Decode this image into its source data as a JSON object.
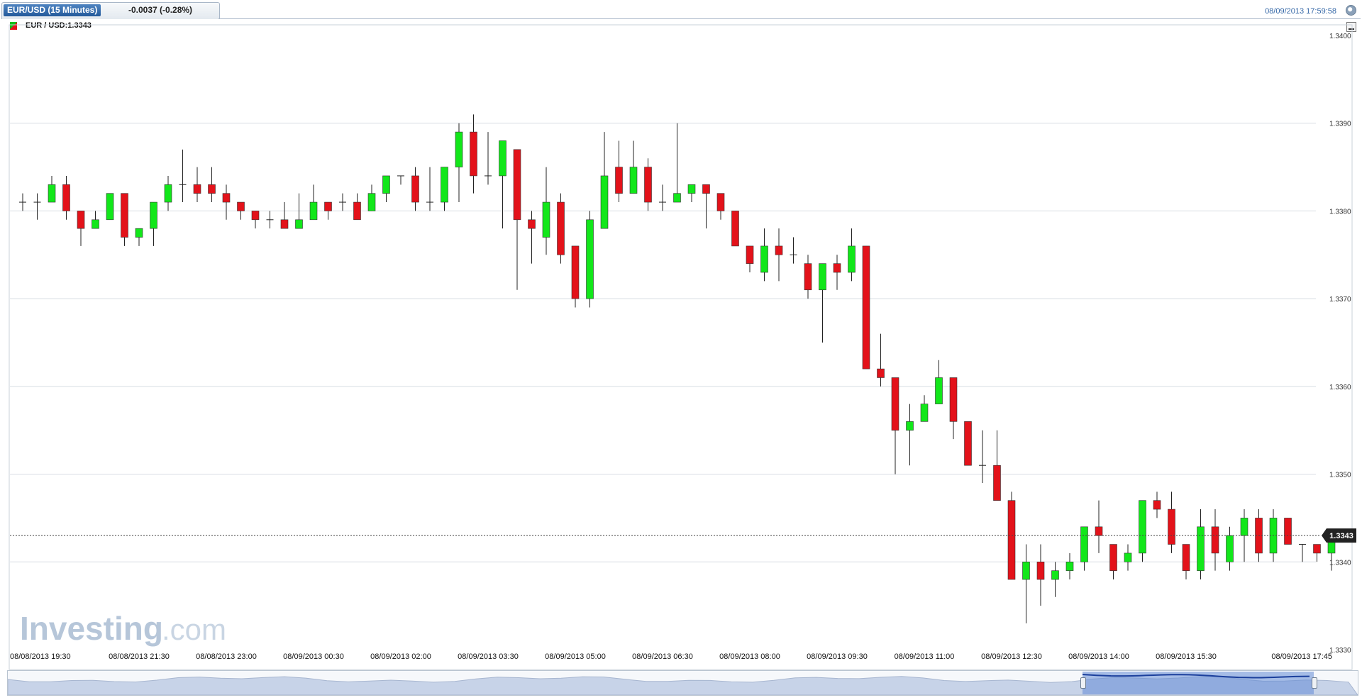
{
  "header": {
    "symbol_tab": "EUR/USD (15 Minutes)",
    "change": "-0.0037 (-0.28%)",
    "timestamp": "08/09/2013 17:59:58",
    "clock_icon": "clock-icon"
  },
  "legend": {
    "label": "EUR / USD:1.3343",
    "icon": "up-down-candle-icon"
  },
  "watermark": {
    "brand": "Investing",
    "suffix": ".com"
  },
  "colors": {
    "up": "#12e71a",
    "down": "#e3121a",
    "grid": "#d8dde3",
    "price_tag": "#222222"
  },
  "chart_data": {
    "type": "candlestick",
    "title": "EUR / USD",
    "interval": "15 Minutes",
    "ylim": [
      1.333,
      1.34
    ],
    "yticks": [
      "1.3400",
      "1.3390",
      "1.3380",
      "1.3370",
      "1.3360",
      "1.3350",
      "1.3340",
      "1.3330"
    ],
    "xticks": [
      {
        "label": "08/08/2013 19:30",
        "index": 0
      },
      {
        "label": "08/08/2013 21:30",
        "index": 8
      },
      {
        "label": "08/08/2013 23:00",
        "index": 14
      },
      {
        "label": "08/09/2013 00:30",
        "index": 20
      },
      {
        "label": "08/09/2013 02:00",
        "index": 26
      },
      {
        "label": "08/09/2013 03:30",
        "index": 32
      },
      {
        "label": "08/09/2013 05:00",
        "index": 38
      },
      {
        "label": "08/09/2013 06:30",
        "index": 44
      },
      {
        "label": "08/09/2013 08:00",
        "index": 50
      },
      {
        "label": "08/09/2013 09:30",
        "index": 56
      },
      {
        "label": "08/09/2013 11:00",
        "index": 62
      },
      {
        "label": "08/09/2013 12:30",
        "index": 68
      },
      {
        "label": "08/09/2013 14:00",
        "index": 74
      },
      {
        "label": "08/09/2013 15:30",
        "index": 80
      },
      {
        "label": "08/09/2013 17:45",
        "index": 89
      }
    ],
    "last_price": 1.3343,
    "last_price_label": "1.3343",
    "candles": [
      [
        1.3381,
        1.3382,
        1.338,
        1.3381
      ],
      [
        1.3381,
        1.3382,
        1.3379,
        1.3381
      ],
      [
        1.3381,
        1.3384,
        1.3381,
        1.3383
      ],
      [
        1.3383,
        1.3384,
        1.3379,
        1.338
      ],
      [
        1.338,
        1.338,
        1.3376,
        1.3378
      ],
      [
        1.3378,
        1.338,
        1.3378,
        1.3379
      ],
      [
        1.3379,
        1.3382,
        1.3379,
        1.3382
      ],
      [
        1.3382,
        1.3382,
        1.3376,
        1.3377
      ],
      [
        1.3377,
        1.3378,
        1.3376,
        1.3378
      ],
      [
        1.3378,
        1.3381,
        1.3376,
        1.3381
      ],
      [
        1.3381,
        1.3384,
        1.338,
        1.3383
      ],
      [
        1.3383,
        1.3387,
        1.3381,
        1.3383
      ],
      [
        1.3383,
        1.3385,
        1.3381,
        1.3382
      ],
      [
        1.3383,
        1.3385,
        1.3381,
        1.3382
      ],
      [
        1.3382,
        1.3383,
        1.3379,
        1.3381
      ],
      [
        1.3381,
        1.3381,
        1.3379,
        1.338
      ],
      [
        1.338,
        1.338,
        1.3378,
        1.3379
      ],
      [
        1.3379,
        1.338,
        1.3378,
        1.3379
      ],
      [
        1.3379,
        1.3381,
        1.3378,
        1.3378
      ],
      [
        1.3378,
        1.3382,
        1.3378,
        1.3379
      ],
      [
        1.3379,
        1.3383,
        1.3379,
        1.3381
      ],
      [
        1.3381,
        1.3381,
        1.3379,
        1.338
      ],
      [
        1.3381,
        1.3382,
        1.338,
        1.3381
      ],
      [
        1.3381,
        1.3382,
        1.3379,
        1.3379
      ],
      [
        1.338,
        1.3383,
        1.338,
        1.3382
      ],
      [
        1.3382,
        1.3384,
        1.3381,
        1.3384
      ],
      [
        1.3384,
        1.3384,
        1.3383,
        1.3384
      ],
      [
        1.3384,
        1.3385,
        1.338,
        1.3381
      ],
      [
        1.3381,
        1.3385,
        1.338,
        1.3381
      ],
      [
        1.3381,
        1.3385,
        1.338,
        1.3385
      ],
      [
        1.3385,
        1.339,
        1.3381,
        1.3389
      ],
      [
        1.3389,
        1.3391,
        1.3382,
        1.3384
      ],
      [
        1.3384,
        1.3389,
        1.3383,
        1.3384
      ],
      [
        1.3384,
        1.3388,
        1.3378,
        1.3388
      ],
      [
        1.3387,
        1.3387,
        1.3371,
        1.3379
      ],
      [
        1.3379,
        1.338,
        1.3374,
        1.3378
      ],
      [
        1.3377,
        1.3385,
        1.3375,
        1.3381
      ],
      [
        1.3381,
        1.3382,
        1.3374,
        1.3375
      ],
      [
        1.3376,
        1.3376,
        1.3369,
        1.337
      ],
      [
        1.337,
        1.338,
        1.3369,
        1.3379
      ],
      [
        1.3378,
        1.3389,
        1.3378,
        1.3384
      ],
      [
        1.3385,
        1.3388,
        1.3381,
        1.3382
      ],
      [
        1.3382,
        1.3388,
        1.3382,
        1.3385
      ],
      [
        1.3385,
        1.3386,
        1.338,
        1.3381
      ],
      [
        1.3381,
        1.3383,
        1.338,
        1.3381
      ],
      [
        1.3381,
        1.339,
        1.3381,
        1.3382
      ],
      [
        1.3382,
        1.3383,
        1.3381,
        1.3383
      ],
      [
        1.3383,
        1.3383,
        1.3378,
        1.3382
      ],
      [
        1.3382,
        1.3382,
        1.3379,
        1.338
      ],
      [
        1.338,
        1.338,
        1.3376,
        1.3376
      ],
      [
        1.3376,
        1.3376,
        1.3373,
        1.3374
      ],
      [
        1.3373,
        1.3378,
        1.3372,
        1.3376
      ],
      [
        1.3376,
        1.3378,
        1.3372,
        1.3375
      ],
      [
        1.3375,
        1.3377,
        1.3374,
        1.3375
      ],
      [
        1.3374,
        1.3375,
        1.337,
        1.3371
      ],
      [
        1.3371,
        1.3374,
        1.3365,
        1.3374
      ],
      [
        1.3374,
        1.3375,
        1.3371,
        1.3373
      ],
      [
        1.3373,
        1.3378,
        1.3372,
        1.3376
      ],
      [
        1.3376,
        1.3376,
        1.3362,
        1.3362
      ],
      [
        1.3362,
        1.3366,
        1.336,
        1.3361
      ],
      [
        1.3361,
        1.3361,
        1.335,
        1.3355
      ],
      [
        1.3355,
        1.3358,
        1.3351,
        1.3356
      ],
      [
        1.3356,
        1.3359,
        1.3356,
        1.3358
      ],
      [
        1.3358,
        1.3363,
        1.3358,
        1.3361
      ],
      [
        1.3361,
        1.3361,
        1.3354,
        1.3356
      ],
      [
        1.3356,
        1.3356,
        1.3351,
        1.3351
      ],
      [
        1.3351,
        1.3355,
        1.3349,
        1.3351
      ],
      [
        1.3351,
        1.3355,
        1.3347,
        1.3347
      ],
      [
        1.3347,
        1.3348,
        1.3338,
        1.3338
      ],
      [
        1.3338,
        1.3342,
        1.3333,
        1.334
      ],
      [
        1.334,
        1.3342,
        1.3335,
        1.3338
      ],
      [
        1.3338,
        1.334,
        1.3336,
        1.3339
      ],
      [
        1.3339,
        1.3341,
        1.3338,
        1.334
      ],
      [
        1.334,
        1.3344,
        1.3339,
        1.3344
      ],
      [
        1.3344,
        1.3347,
        1.3341,
        1.3343
      ],
      [
        1.3342,
        1.3342,
        1.3338,
        1.3339
      ],
      [
        1.334,
        1.3342,
        1.3339,
        1.3341
      ],
      [
        1.3341,
        1.3347,
        1.334,
        1.3347
      ],
      [
        1.3347,
        1.3348,
        1.3345,
        1.3346
      ],
      [
        1.3346,
        1.3348,
        1.3341,
        1.3342
      ],
      [
        1.3342,
        1.3342,
        1.3338,
        1.3339
      ],
      [
        1.3339,
        1.3346,
        1.3338,
        1.3344
      ],
      [
        1.3344,
        1.3346,
        1.3339,
        1.3341
      ],
      [
        1.334,
        1.3344,
        1.3339,
        1.3343
      ],
      [
        1.3343,
        1.3346,
        1.334,
        1.3345
      ],
      [
        1.3345,
        1.3346,
        1.334,
        1.3341
      ],
      [
        1.3341,
        1.3346,
        1.334,
        1.3345
      ],
      [
        1.3345,
        1.3345,
        1.3342,
        1.3342
      ],
      [
        1.3342,
        1.3342,
        1.334,
        1.3342
      ],
      [
        1.3342,
        1.3342,
        1.334,
        1.3341
      ],
      [
        1.3341,
        1.3343,
        1.3339,
        1.3343
      ]
    ]
  }
}
